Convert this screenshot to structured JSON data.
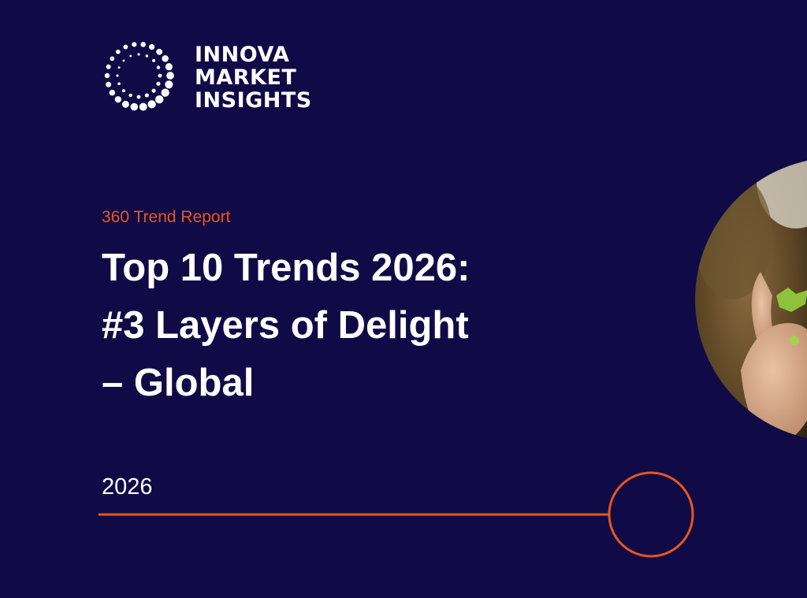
{
  "logo": {
    "lines": [
      "INNOVA",
      "MARKET",
      "INSIGHTS"
    ]
  },
  "report_label": "360 Trend Report",
  "title": {
    "lines": [
      "Top 10 Trends 2026:",
      "#3 Layers of Delight",
      "– Global"
    ]
  },
  "year": "2026"
}
